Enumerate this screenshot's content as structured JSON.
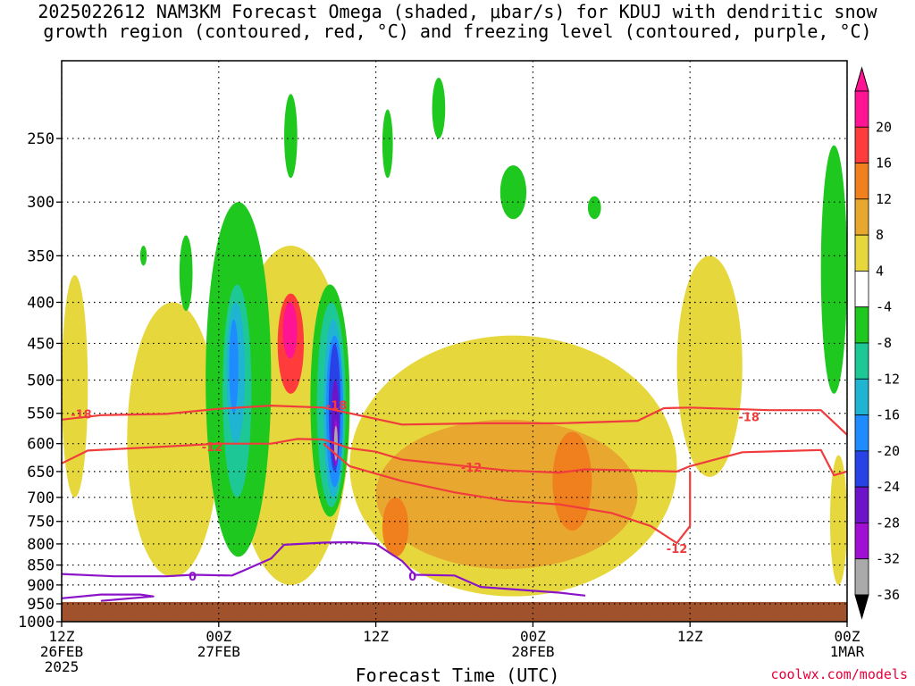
{
  "title_line1": "2025022612 NAM3KM Forecast Omega (shaded, μbar/s) for KDUJ with dendritic snow",
  "title_line2": "growth region (contoured, red, °C) and freezing level (contoured, purple, °C)",
  "xlabel": "Forecast Time (UTC)",
  "credit": "coolwx.com/models",
  "chart_data": {
    "type": "heatmap",
    "title": "2025022612 NAM3KM Forecast Omega (shaded, μbar/s) for KDUJ with dendritic snow growth region (contoured, red, °C) and freezing level (contoured, purple, °C)",
    "xlabel": "Forecast Time (UTC)",
    "ylabel": "",
    "y_scale": "log-pressure (hPa)",
    "ylim": [
      1000,
      200
    ],
    "xlim_hours": [
      0,
      60
    ],
    "y_ticks": [
      250,
      300,
      350,
      400,
      450,
      500,
      550,
      600,
      650,
      700,
      750,
      800,
      850,
      900,
      950,
      1000
    ],
    "x_ticks": [
      {
        "hour": 0,
        "label": [
          "12Z",
          "26FEB",
          "2025"
        ]
      },
      {
        "hour": 12,
        "label": [
          "00Z",
          "27FEB"
        ]
      },
      {
        "hour": 24,
        "label": [
          "12Z"
        ]
      },
      {
        "hour": 36,
        "label": [
          "00Z",
          "28FEB"
        ]
      },
      {
        "hour": 48,
        "label": [
          "12Z"
        ]
      },
      {
        "hour": 60,
        "label": [
          "00Z",
          "1MAR"
        ]
      }
    ],
    "colorbar": {
      "levels": [
        {
          "label": "20",
          "color": "#ff1493"
        },
        {
          "label": "16",
          "color": "#ff3b3b"
        },
        {
          "label": "12",
          "color": "#f07f1e"
        },
        {
          "label": "8",
          "color": "#e8a830"
        },
        {
          "label": "4",
          "color": "#e6d83c"
        },
        {
          "label": "-4",
          "color": "#ffffff"
        },
        {
          "label": "-8",
          "color": "#1fc81f"
        },
        {
          "label": "-12",
          "color": "#1ec896"
        },
        {
          "label": "-16",
          "color": "#1eb4d2"
        },
        {
          "label": "-20",
          "color": "#1e8cff"
        },
        {
          "label": "-24",
          "color": "#2842e6"
        },
        {
          "label": "-28",
          "color": "#6e14c8"
        },
        {
          "label": "-32",
          "color": "#a00fd2"
        },
        {
          "label": "-36",
          "color": "#aaaaaa"
        }
      ],
      "top_arrow_color": "#ff1493",
      "bottom_arrow_color": "#000000"
    },
    "ground_level_hpa": 945,
    "ground_color": "#a0522d",
    "contours": [
      {
        "name": "-18",
        "color": "#f03c3c",
        "points": [
          [
            0,
            560
          ],
          [
            3,
            553
          ],
          [
            8,
            551
          ],
          [
            12,
            543
          ],
          [
            16,
            538
          ],
          [
            20,
            541
          ],
          [
            26,
            568
          ],
          [
            32,
            566
          ],
          [
            38,
            566
          ],
          [
            44,
            562
          ],
          [
            46,
            542
          ],
          [
            48,
            541
          ],
          [
            54,
            545
          ],
          [
            58,
            545
          ],
          [
            60,
            585
          ]
        ]
      },
      {
        "name": "-12",
        "color": "#f03c3c",
        "points": [
          [
            0,
            635
          ],
          [
            2,
            612
          ],
          [
            8,
            605
          ],
          [
            12,
            600
          ],
          [
            16,
            600
          ],
          [
            18,
            592
          ],
          [
            20,
            593
          ],
          [
            22,
            608
          ],
          [
            24,
            614
          ],
          [
            26,
            628
          ],
          [
            30,
            638
          ],
          [
            34,
            648
          ],
          [
            38,
            652
          ],
          [
            40,
            646
          ],
          [
            44,
            648
          ],
          [
            47,
            650
          ],
          [
            48,
            640
          ],
          [
            52,
            615
          ],
          [
            58,
            611
          ],
          [
            59,
            657
          ],
          [
            60,
            650
          ]
        ]
      },
      {
        "name": "-12 (lower)",
        "color": "#f03c3c",
        "points": [
          [
            20,
            600
          ],
          [
            22,
            640
          ],
          [
            26,
            668
          ],
          [
            30,
            690
          ],
          [
            34,
            707
          ],
          [
            38,
            714
          ],
          [
            42,
            732
          ],
          [
            45,
            760
          ],
          [
            47,
            798
          ],
          [
            48,
            760
          ],
          [
            48,
            700
          ],
          [
            48,
            650
          ]
        ]
      },
      {
        "name": "0",
        "color": "#8c14c8",
        "points": [
          [
            0,
            872
          ],
          [
            4,
            878
          ],
          [
            8,
            878
          ],
          [
            10,
            874
          ],
          [
            13,
            876
          ],
          [
            14,
            862
          ],
          [
            16,
            834
          ],
          [
            17,
            802
          ],
          [
            20,
            797
          ],
          [
            22,
            796
          ],
          [
            24,
            800
          ],
          [
            26,
            840
          ],
          [
            27,
            874
          ],
          [
            30,
            876
          ],
          [
            32,
            905
          ],
          [
            38,
            920
          ],
          [
            40,
            928
          ]
        ]
      },
      {
        "name": "0 (lower)",
        "color": "#8c14c8",
        "points": [
          [
            0,
            935
          ],
          [
            3,
            925
          ],
          [
            6,
            925
          ],
          [
            7,
            930
          ],
          [
            3,
            942
          ]
        ]
      }
    ],
    "contour_labels": [
      {
        "text": "-18",
        "hour": 1.5,
        "hpa": 551,
        "color": "#f03c3c"
      },
      {
        "text": "-12",
        "hour": 11.5,
        "hpa": 605,
        "color": "#f03c3c"
      },
      {
        "text": "-18",
        "hour": 21.0,
        "hpa": 537,
        "color": "#f03c3c"
      },
      {
        "text": "-12",
        "hour": 31.3,
        "hpa": 642,
        "color": "#f03c3c"
      },
      {
        "text": "-18",
        "hour": 52.5,
        "hpa": 555,
        "color": "#f03c3c"
      },
      {
        "text": "-12",
        "hour": 47.0,
        "hpa": 810,
        "color": "#f03c3c"
      },
      {
        "text": "0",
        "hour": 10.0,
        "hpa": 878,
        "color": "#8c14c8"
      },
      {
        "text": "0",
        "hour": 26.8,
        "hpa": 878,
        "color": "#8c14c8"
      }
    ],
    "shaded_regions": [
      {
        "value": 4,
        "hour_range": [
          0,
          2
        ],
        "hpa_range": [
          370,
          700
        ],
        "color": "#e6d83c"
      },
      {
        "value": 4,
        "hour_range": [
          5,
          12
        ],
        "hpa_range": [
          400,
          880
        ],
        "color": "#e6d83c"
      },
      {
        "value": 4,
        "hour_range": [
          13,
          22
        ],
        "hpa_range": [
          340,
          900
        ],
        "color": "#e6d83c"
      },
      {
        "value": 4,
        "hour_range": [
          22,
          47
        ],
        "hpa_range": [
          440,
          930
        ],
        "color": "#e6d83c"
      },
      {
        "value": 4,
        "hour_range": [
          47,
          52
        ],
        "hpa_range": [
          350,
          660
        ],
        "color": "#e6d83c"
      },
      {
        "value": 4,
        "hour_range": [
          58.7,
          60
        ],
        "hpa_range": [
          620,
          900
        ],
        "color": "#e6d83c"
      },
      {
        "value": 8,
        "hour_range": [
          24,
          44
        ],
        "hpa_range": [
          560,
          860
        ],
        "color": "#e8a830"
      },
      {
        "value": 12,
        "hour_range": [
          24.5,
          26.5
        ],
        "hpa_range": [
          700,
          830
        ],
        "color": "#f07f1e"
      },
      {
        "value": 12,
        "hour_range": [
          37.5,
          40.5
        ],
        "hpa_range": [
          580,
          770
        ],
        "color": "#f07f1e"
      },
      {
        "value": 16,
        "hour_range": [
          16.5,
          18.5
        ],
        "hpa_range": [
          390,
          520
        ],
        "color": "#ff3b3b"
      },
      {
        "value": 20,
        "hour_range": [
          16.9,
          18.0
        ],
        "hpa_range": [
          400,
          470
        ],
        "color": "#ff1493"
      },
      {
        "value": -8,
        "hour_range": [
          6,
          6.5
        ],
        "hpa_range": [
          340,
          360
        ],
        "color": "#1fc81f"
      },
      {
        "value": -8,
        "hour_range": [
          9,
          10
        ],
        "hpa_range": [
          330,
          410
        ],
        "color": "#1fc81f"
      },
      {
        "value": -8,
        "hour_range": [
          11,
          16
        ],
        "hpa_range": [
          300,
          830
        ],
        "color": "#1fc81f"
      },
      {
        "value": -8,
        "hour_range": [
          17,
          18
        ],
        "hpa_range": [
          220,
          280
        ],
        "color": "#1fc81f"
      },
      {
        "value": -8,
        "hour_range": [
          19,
          22
        ],
        "hpa_range": [
          380,
          740
        ],
        "color": "#1fc81f"
      },
      {
        "value": -8,
        "hour_range": [
          24.5,
          25.3
        ],
        "hpa_range": [
          230,
          280
        ],
        "color": "#1fc81f"
      },
      {
        "value": -8,
        "hour_range": [
          28.3,
          29.3
        ],
        "hpa_range": [
          210,
          250
        ],
        "color": "#1fc81f"
      },
      {
        "value": -8,
        "hour_range": [
          33.5,
          35.5
        ],
        "hpa_range": [
          270,
          315
        ],
        "color": "#1fc81f"
      },
      {
        "value": -8,
        "hour_range": [
          40.2,
          41.2
        ],
        "hpa_range": [
          295,
          315
        ],
        "color": "#1fc81f"
      },
      {
        "value": -8,
        "hour_range": [
          58.0,
          60.0
        ],
        "hpa_range": [
          255,
          520
        ],
        "color": "#1fc81f"
      },
      {
        "value": -12,
        "hour_range": [
          12.3,
          14.5
        ],
        "hpa_range": [
          380,
          700
        ],
        "color": "#1ec896"
      },
      {
        "value": -12,
        "hour_range": [
          19.5,
          21.7
        ],
        "hpa_range": [
          400,
          720
        ],
        "color": "#1ec896"
      },
      {
        "value": -16,
        "hour_range": [
          12.6,
          14.0
        ],
        "hpa_range": [
          400,
          600
        ],
        "color": "#1eb4d2"
      },
      {
        "value": -16,
        "hour_range": [
          20.0,
          21.5
        ],
        "hpa_range": [
          420,
          700
        ],
        "color": "#1eb4d2"
      },
      {
        "value": -20,
        "hour_range": [
          12.8,
          13.5
        ],
        "hpa_range": [
          420,
          550
        ],
        "color": "#1e8cff"
      },
      {
        "value": -20,
        "hour_range": [
          20.2,
          21.5
        ],
        "hpa_range": [
          440,
          680
        ],
        "color": "#1e8cff"
      },
      {
        "value": -24,
        "hour_range": [
          20.4,
          21.3
        ],
        "hpa_range": [
          450,
          650
        ],
        "color": "#2842e6"
      },
      {
        "value": -28,
        "hour_range": [
          20.6,
          21.2
        ],
        "hpa_range": [
          500,
          640
        ],
        "color": "#6e14c8"
      },
      {
        "value": -32,
        "hour_range": [
          20.8,
          21.1
        ],
        "hpa_range": [
          560,
          640
        ],
        "color": "#a00fd2"
      },
      {
        "value": -36,
        "hour_range": [
          20.85,
          21.05
        ],
        "hpa_range": [
          570,
          630
        ],
        "color": "#aaaaaa"
      }
    ]
  }
}
